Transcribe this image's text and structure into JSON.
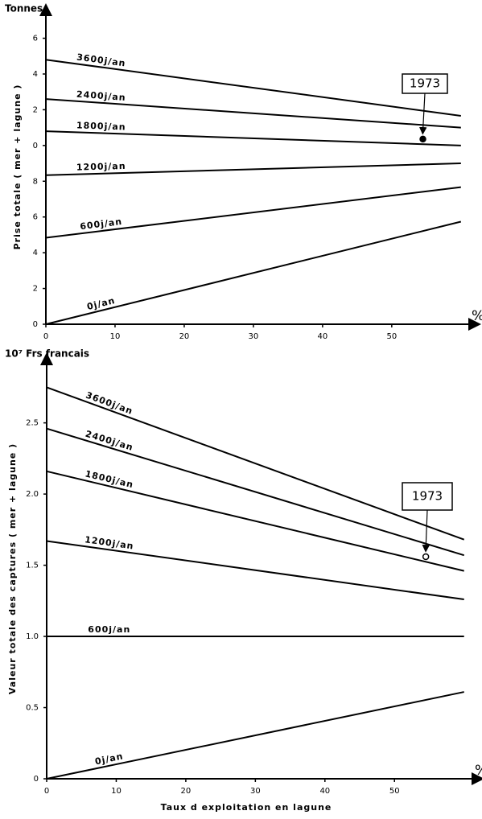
{
  "chart_data": [
    {
      "type": "line",
      "title": "Tonnes",
      "y_label": "Prise totale ( mer + lagune )",
      "x_unit": "%",
      "x": [
        0,
        60
      ],
      "xlim": [
        0,
        62
      ],
      "xticks": [
        0,
        10,
        20,
        30,
        40,
        50
      ],
      "ylim": [
        0,
        17.6
      ],
      "yticks": [
        0,
        2,
        4,
        6,
        8,
        {
          "value": 10,
          "label": "0"
        },
        {
          "value": 12,
          "label": "2"
        },
        {
          "value": 14,
          "label": "4"
        },
        {
          "value": 16,
          "label": "6"
        }
      ],
      "series": [
        {
          "name": "3600j/an",
          "color": "#000000",
          "values": [
            14.8,
            11.66
          ]
        },
        {
          "name": "2400j/an",
          "color": "#000000",
          "values": [
            12.6,
            11.0
          ]
        },
        {
          "name": "1800j/an",
          "color": "#000000",
          "values": [
            10.8,
            10.0
          ]
        },
        {
          "name": "1200j/an",
          "color": "#000000",
          "values": [
            8.34,
            9.0
          ]
        },
        {
          "name": "600j/an",
          "color": "#000000",
          "values": [
            4.84,
            7.67
          ]
        },
        {
          "name": "0j/an",
          "color": "#000000",
          "values": [
            0,
            5.74
          ]
        }
      ],
      "annotation": {
        "label": "1973",
        "x": 54.5,
        "y": 10.36,
        "filled": true
      }
    },
    {
      "type": "line",
      "title": "10⁷ Frs francais",
      "y_label": "Valeur totale des captures ( mer + lagune )",
      "x_unit": "%",
      "x_label": "Taux d exploitation en lagune",
      "x": [
        0,
        60
      ],
      "xlim": [
        0,
        62
      ],
      "xticks": [
        0,
        10,
        20,
        30,
        40,
        50
      ],
      "ylim": [
        0,
        2.95
      ],
      "yticks": [
        0,
        0.5,
        {
          "value": 1,
          "label": "1.0"
        },
        1.5,
        {
          "value": 2,
          "label": "2.0"
        },
        2.5
      ],
      "series": [
        {
          "name": "3600j/an",
          "color": "#000000",
          "values": [
            2.75,
            1.68
          ]
        },
        {
          "name": "2400j/an",
          "color": "#000000",
          "values": [
            2.46,
            1.57
          ]
        },
        {
          "name": "1800j/an",
          "color": "#000000",
          "values": [
            2.16,
            1.46
          ]
        },
        {
          "name": "1200j/an",
          "color": "#000000",
          "values": [
            1.67,
            1.26
          ]
        },
        {
          "name": "600j/an",
          "color": "#000000",
          "values": [
            1.0,
            1.0
          ]
        },
        {
          "name": "0j/an",
          "color": "#000000",
          "values": [
            0,
            0.61
          ]
        }
      ],
      "annotation": {
        "label": "1973",
        "x": 54.5,
        "y": 1.56,
        "filled": false
      }
    }
  ]
}
